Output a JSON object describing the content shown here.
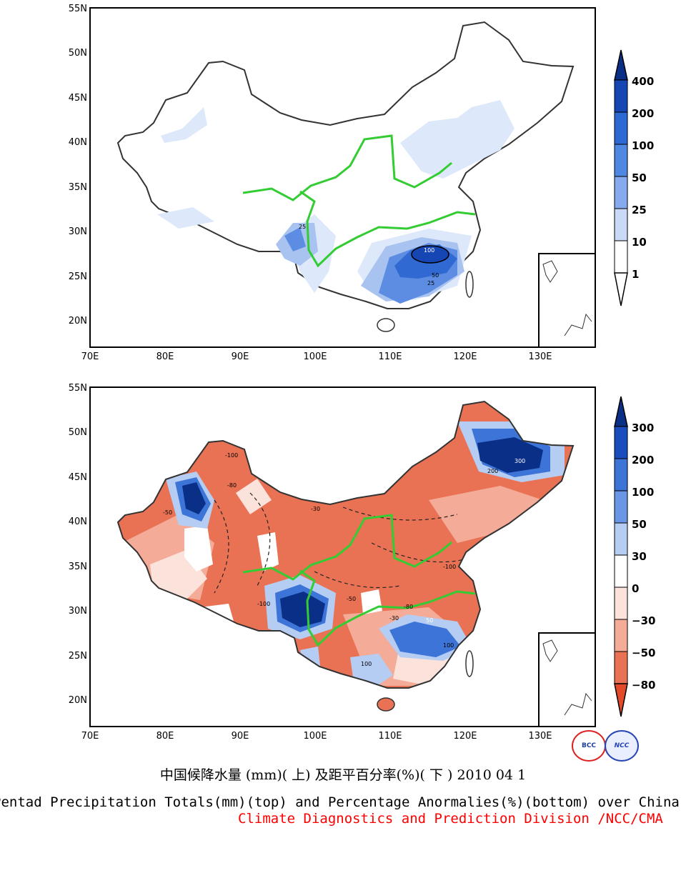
{
  "maps": [
    {
      "name": "top",
      "legend_values": [
        "400",
        "200",
        "100",
        "50",
        "25",
        "10",
        "1"
      ],
      "legend_colors": [
        "#0a2f86",
        "#1646b4",
        "#2d68d5",
        "#4f88e2",
        "#86aaee",
        "#c9d9f7",
        "#ffffff"
      ],
      "contour_labels": [
        "25",
        "100",
        "50",
        "25"
      ]
    },
    {
      "name": "bottom",
      "legend_values": [
        "300",
        "200",
        "100",
        "50",
        "30",
        "0",
        "−30",
        "−50",
        "−80"
      ],
      "legend_colors": [
        "#0a2f86",
        "#1a4cbd",
        "#3d74d8",
        "#6a96e6",
        "#b6cdf3",
        "#ffffff",
        "#fbe3dc",
        "#f4ab98",
        "#ea7254",
        "#e24a2a"
      ],
      "contour_labels": [
        "-100",
        "-80",
        "-50",
        "-30",
        "300",
        "200",
        "100",
        "-100",
        "-80",
        "50",
        "-100",
        "100",
        "-30",
        "-50"
      ]
    }
  ],
  "axes": {
    "lon_labels": [
      "70E",
      "80E",
      "90E",
      "100E",
      "110E",
      "120E",
      "130E"
    ],
    "lat_labels": [
      "55N",
      "50N",
      "45N",
      "40N",
      "35N",
      "30N",
      "25N",
      "20N"
    ]
  },
  "captions": {
    "title_cn": "中国候降水量 (mm)( 上) 及距平百分率(%)( 下 ) 2010 04 1",
    "title_en": "Pentad Precipitation Totals(mm)(top) and Percentage Anormalies(%)(bottom) over China",
    "org": "Climate Diagnostics and Prediction Division /NCC/CMA"
  },
  "logos": {
    "bcc": "BCC",
    "ncc": "NCC"
  }
}
